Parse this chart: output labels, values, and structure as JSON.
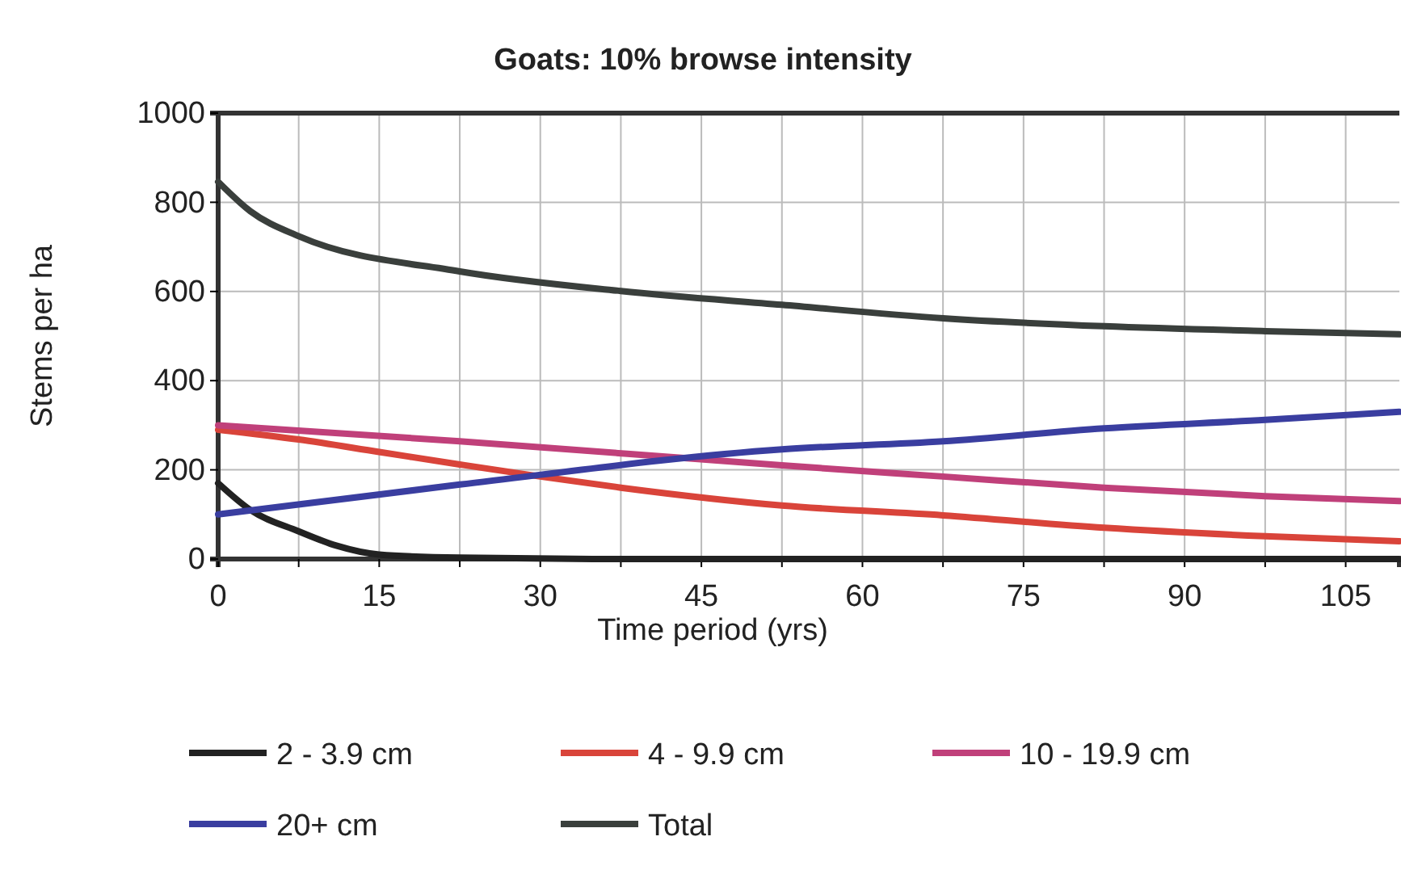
{
  "chart_data": {
    "type": "line",
    "title": "Goats: 10% browse intensity",
    "xlabel": "Time period (yrs)",
    "ylabel": "Stems per ha",
    "xlim": [
      0,
      110
    ],
    "xticks": [
      0,
      {
        "value": 7.5,
        "label": null
      },
      15,
      {
        "value": 22.5,
        "label": null
      },
      30,
      {
        "value": 37.5,
        "label": null
      },
      45,
      {
        "value": 52.5,
        "label": null
      },
      60,
      {
        "value": 67.5,
        "label": null
      },
      75,
      {
        "value": 82.5,
        "label": null
      },
      90,
      {
        "value": 97.5,
        "label": null
      },
      105
    ],
    "ylim": [
      0,
      1000
    ],
    "yticks": [
      0,
      200,
      400,
      600,
      800,
      1000
    ],
    "grid": true,
    "legend": "bottom",
    "marker": "none",
    "line_style": "solid",
    "series": [
      {
        "name": "2 - 3.9 cm",
        "color": "#222222",
        "x": [
          0,
          3,
          7.5,
          11,
          15,
          22.5,
          37.5,
          52.5,
          67.5,
          82.5,
          97.5,
          110
        ],
        "values": [
          170,
          110,
          62,
          30,
          10,
          3,
          0,
          0,
          0,
          0,
          0,
          0
        ]
      },
      {
        "name": "4 - 9.9 cm",
        "color": "#d9443a",
        "x": [
          0,
          7.5,
          15,
          22.5,
          30,
          37.5,
          52.5,
          67.5,
          82.5,
          97.5,
          110
        ],
        "values": [
          290,
          268,
          240,
          212,
          185,
          160,
          120,
          98,
          70,
          51,
          40
        ]
      },
      {
        "name": "10 - 19.9 cm",
        "color": "#c0407a",
        "x": [
          0,
          22.5,
          52.5,
          67.5,
          82.5,
          97.5,
          110
        ],
        "values": [
          300,
          264,
          210,
          185,
          160,
          141,
          130
        ]
      },
      {
        "name": "20+ cm",
        "color": "#3a3ea0",
        "x": [
          0,
          22.5,
          52.5,
          67.5,
          82.5,
          97.5,
          110
        ],
        "values": [
          100,
          167,
          246,
          264,
          293,
          312,
          330
        ]
      },
      {
        "name": "Total",
        "color": "#3a3f3c",
        "x": [
          0,
          3,
          7.5,
          22.5,
          37.5,
          52.5,
          67.5,
          82.5,
          97.5,
          110
        ],
        "values": [
          846,
          780,
          724,
          645,
          601,
          570,
          540,
          522,
          511,
          504
        ]
      }
    ]
  }
}
